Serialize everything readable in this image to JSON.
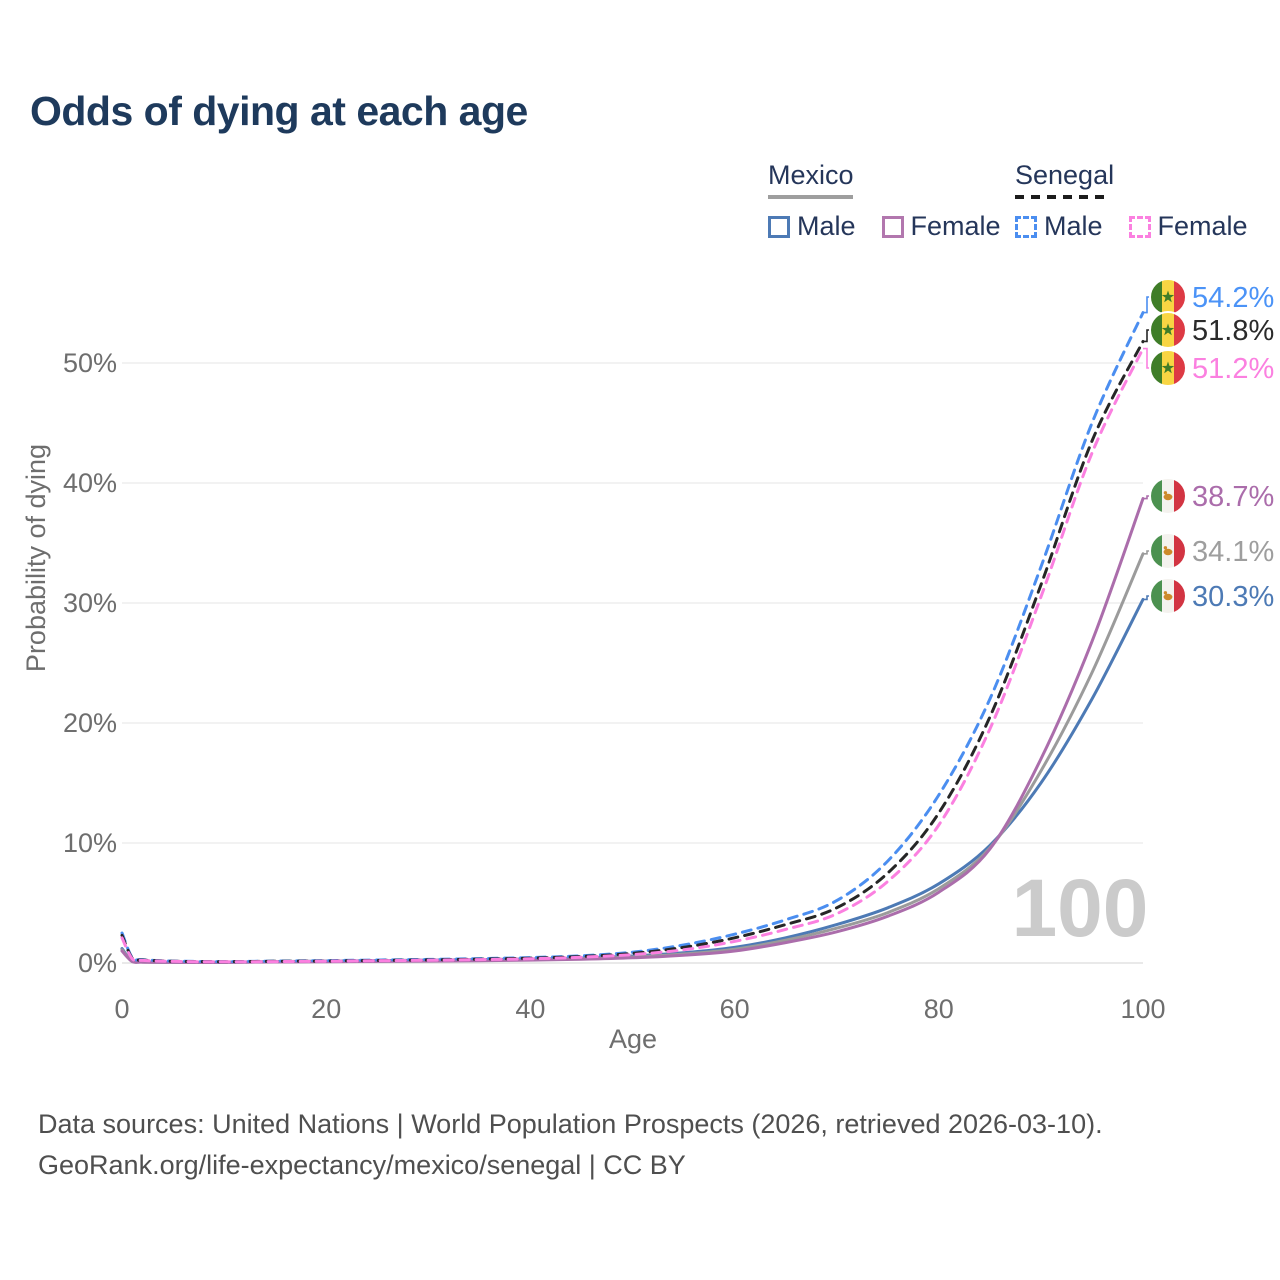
{
  "title": "Odds of dying at each age",
  "legend": {
    "groups": [
      {
        "country": "Mexico",
        "underline_style": "solid",
        "underline_color": "#9e9e9e",
        "items": [
          {
            "label": "Male",
            "color": "#4d7ab5",
            "dashed": false
          },
          {
            "label": "Female",
            "color": "#b277ae",
            "dashed": false
          }
        ]
      },
      {
        "country": "Senegal",
        "underline_style": "dashed",
        "underline_color": "#1c1c1c",
        "items": [
          {
            "label": "Male",
            "color": "#4b8ef0",
            "dashed": true
          },
          {
            "label": "Female",
            "color": "#fb80e0",
            "dashed": true
          }
        ]
      }
    ]
  },
  "watermark": "100",
  "footer": {
    "line1": "Data sources: United Nations | World Population Prospects (2026, retrieved 2026-03-10).",
    "line2": "GeoRank.org/life-expectancy/mexico/senegal | CC BY"
  },
  "chart_data": {
    "type": "line",
    "title": "Odds of dying at each age",
    "xlabel": "Age",
    "ylabel": "Probability of dying",
    "xlim": [
      0,
      100
    ],
    "ylim": [
      0,
      57
    ],
    "grid": "horizontal",
    "x_ticks": [
      {
        "value": 0,
        "label": "0"
      },
      {
        "value": 20,
        "label": "20"
      },
      {
        "value": 40,
        "label": "40"
      },
      {
        "value": 60,
        "label": "60"
      },
      {
        "value": 80,
        "label": "80"
      },
      {
        "value": 100,
        "label": "100"
      }
    ],
    "y_ticks": [
      {
        "value": 0,
        "label": "0%"
      },
      {
        "value": 10,
        "label": "10%"
      },
      {
        "value": 20,
        "label": "20%"
      },
      {
        "value": 30,
        "label": "30%"
      },
      {
        "value": 40,
        "label": "40%"
      },
      {
        "value": 50,
        "label": "50%"
      }
    ],
    "ages": [
      0,
      1,
      2,
      5,
      10,
      15,
      20,
      25,
      30,
      35,
      40,
      45,
      50,
      55,
      60,
      65,
      70,
      75,
      80,
      85,
      90,
      95,
      100
    ],
    "series": [
      {
        "id": "mexico-male",
        "name": "Mexico Male",
        "country": "Mexico",
        "sex": "Male",
        "color": "#4d7ab5",
        "dashed": false,
        "flag": "mexico",
        "end_label": "30.3%",
        "label_color": "#4d7ab5",
        "values": [
          1.2,
          0.15,
          0.09,
          0.06,
          0.07,
          0.12,
          0.16,
          0.2,
          0.24,
          0.28,
          0.33,
          0.42,
          0.58,
          0.85,
          1.3,
          2.1,
          3.2,
          4.6,
          6.6,
          9.8,
          15.0,
          22.0,
          30.3
        ]
      },
      {
        "id": "mexico-both",
        "name": "Mexico (both sexes)",
        "country": "Mexico",
        "sex": "Both",
        "color": "#9b9b9b",
        "dashed": false,
        "flag": "mexico",
        "end_label": "34.1%",
        "label_color": "#9e9e9e",
        "values": [
          1.1,
          0.13,
          0.08,
          0.055,
          0.06,
          0.1,
          0.13,
          0.16,
          0.19,
          0.23,
          0.28,
          0.36,
          0.5,
          0.75,
          1.15,
          1.9,
          2.9,
          4.2,
          6.2,
          9.6,
          16.0,
          24.2,
          34.1
        ]
      },
      {
        "id": "mexico-female",
        "name": "Mexico Female",
        "country": "Mexico",
        "sex": "Female",
        "color": "#ab6dab",
        "dashed": false,
        "flag": "mexico",
        "end_label": "38.7%",
        "label_color": "#ab6dab",
        "values": [
          1.0,
          0.12,
          0.07,
          0.05,
          0.05,
          0.08,
          0.1,
          0.13,
          0.16,
          0.19,
          0.24,
          0.31,
          0.43,
          0.65,
          1.0,
          1.7,
          2.6,
          3.9,
          5.9,
          9.5,
          17.0,
          26.8,
          38.7
        ]
      },
      {
        "id": "senegal-male",
        "name": "Senegal Male",
        "country": "Senegal",
        "sex": "Male",
        "color": "#4b8ef0",
        "dashed": true,
        "flag": "senegal",
        "end_label": "54.2%",
        "label_color": "#4b93f7",
        "values": [
          2.5,
          0.45,
          0.28,
          0.16,
          0.12,
          0.16,
          0.2,
          0.25,
          0.3,
          0.37,
          0.45,
          0.6,
          0.9,
          1.5,
          2.4,
          3.6,
          5.2,
          8.5,
          14.0,
          22.0,
          33.0,
          45.0,
          54.2
        ]
      },
      {
        "id": "senegal-both",
        "name": "Senegal (both sexes)",
        "country": "Senegal",
        "sex": "Both",
        "color": "#262626",
        "dashed": true,
        "flag": "senegal",
        "end_label": "51.8%",
        "label_color": "#2b2b2b",
        "values": [
          2.3,
          0.4,
          0.25,
          0.14,
          0.11,
          0.14,
          0.17,
          0.21,
          0.26,
          0.32,
          0.4,
          0.54,
          0.8,
          1.3,
          2.1,
          3.2,
          4.6,
          7.5,
          12.5,
          20.5,
          31.5,
          43.5,
          51.8
        ]
      },
      {
        "id": "senegal-female",
        "name": "Senegal Female",
        "country": "Senegal",
        "sex": "Female",
        "color": "#fb80e0",
        "dashed": true,
        "flag": "senegal",
        "end_label": "51.2%",
        "label_color": "#fb80e0",
        "values": [
          2.1,
          0.36,
          0.22,
          0.13,
          0.1,
          0.12,
          0.15,
          0.19,
          0.23,
          0.28,
          0.35,
          0.48,
          0.7,
          1.1,
          1.8,
          2.8,
          4.1,
          6.8,
          11.5,
          19.5,
          30.5,
          42.5,
          51.2
        ]
      }
    ],
    "age_counter": "100",
    "legend_position": "top-right"
  }
}
